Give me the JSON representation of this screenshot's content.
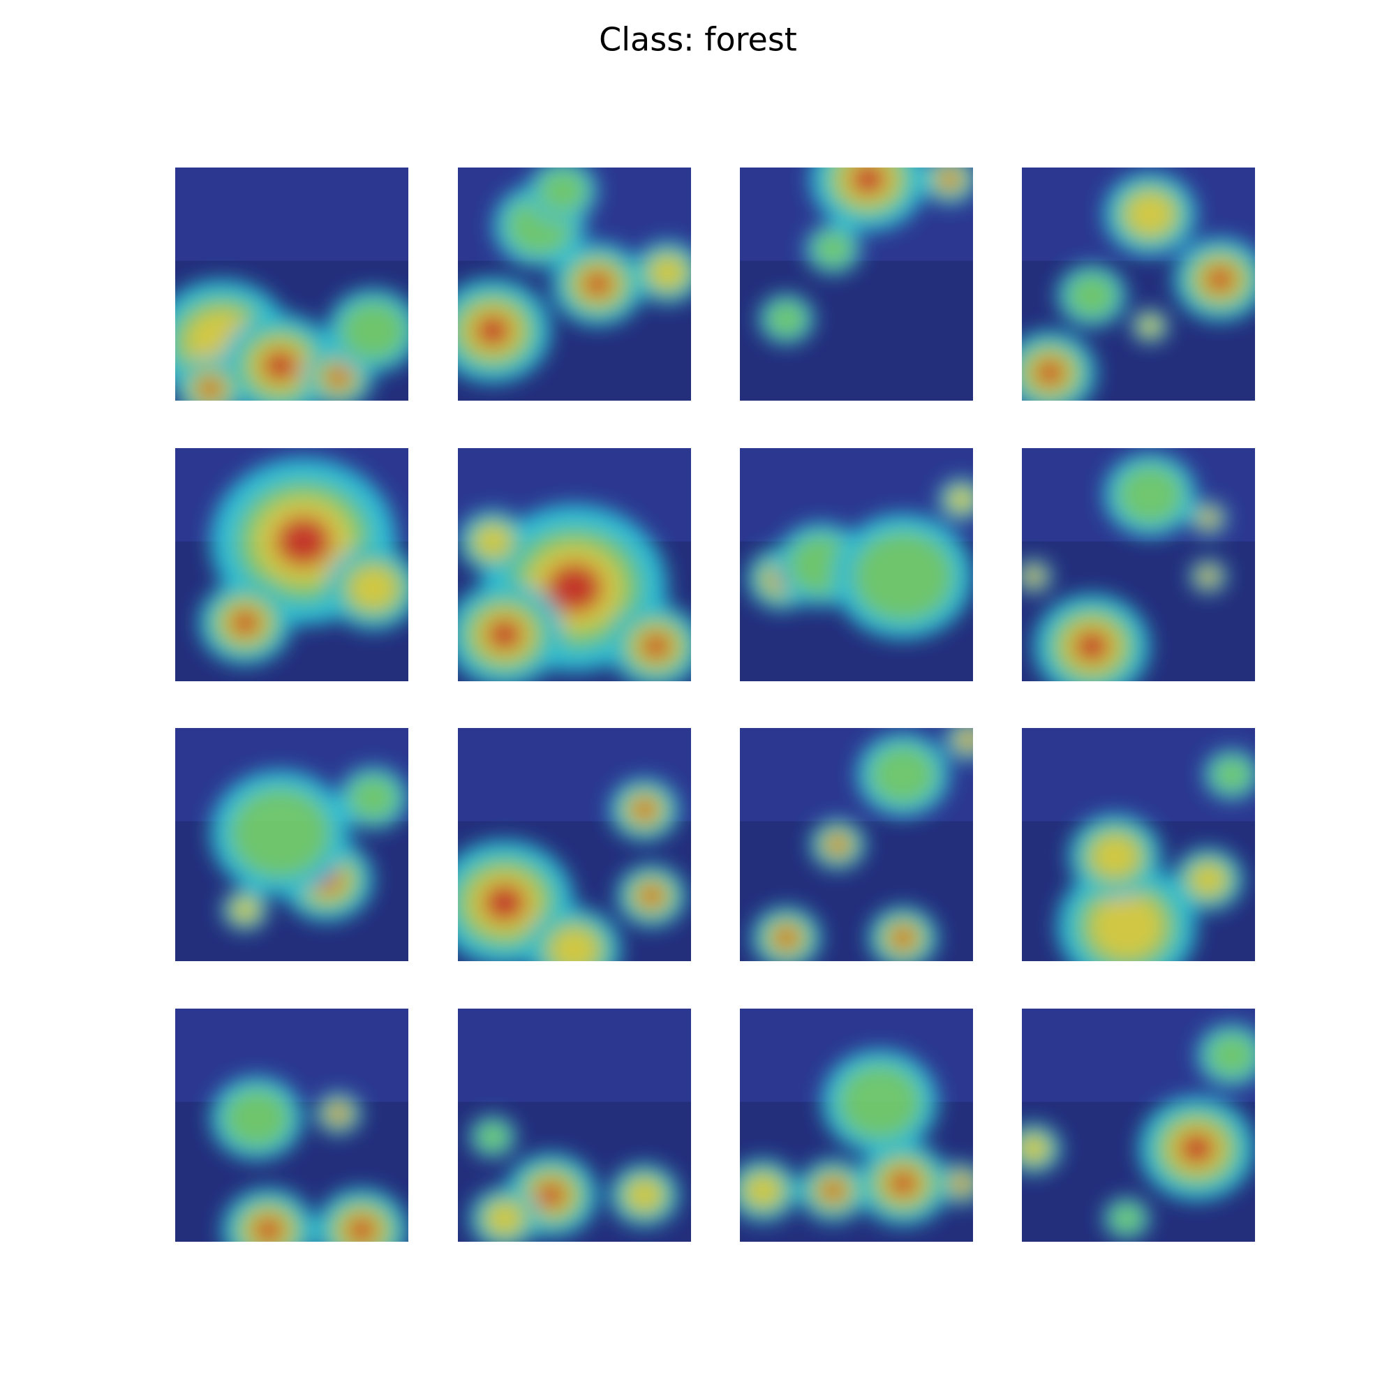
{
  "header": {
    "title": "Class: forest"
  }
}
